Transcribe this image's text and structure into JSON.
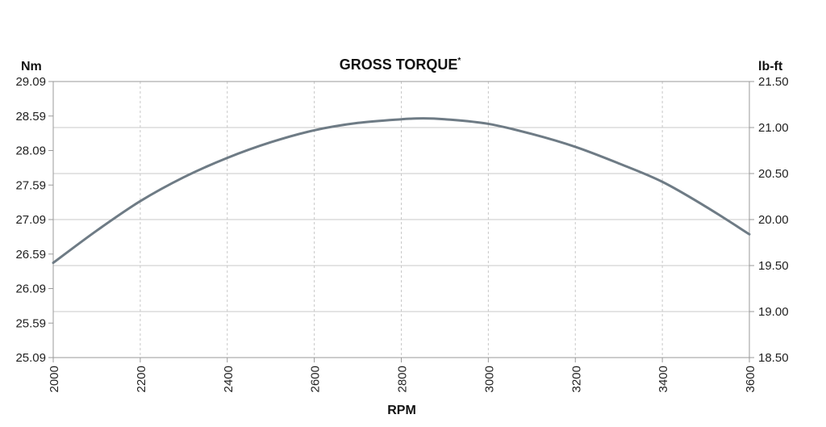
{
  "chart_data": {
    "type": "line",
    "title": "GROSS TORQUE",
    "title_superscript": "*",
    "xlabel": "RPM",
    "y_left_label": "Nm",
    "y_right_label": "lb-ft",
    "xlim": [
      2000,
      3600
    ],
    "x_ticks": [
      "2000",
      "2200",
      "2400",
      "2600",
      "2800",
      "3000",
      "3200",
      "3400",
      "3600"
    ],
    "y_left_lim": [
      25.09,
      29.09
    ],
    "y_left_ticks": [
      "29.09",
      "28.59",
      "28.09",
      "27.59",
      "27.09",
      "26.59",
      "26.09",
      "25.59",
      "25.09"
    ],
    "y_right_lim": [
      18.5,
      21.5
    ],
    "y_right_ticks": [
      "21.50",
      "21.00",
      "20.50",
      "20.00",
      "19.50",
      "19.00",
      "18.50"
    ],
    "grid": true,
    "series_color": "#6e7b85",
    "series": [
      {
        "x": [
          2000,
          2100,
          2200,
          2300,
          2400,
          2500,
          2600,
          2700,
          2800,
          2850,
          2900,
          3000,
          3100,
          3200,
          3300,
          3400,
          3500,
          3600
        ],
        "y": [
          19.53,
          19.88,
          20.2,
          20.46,
          20.67,
          20.84,
          20.97,
          21.05,
          21.09,
          21.1,
          21.09,
          21.04,
          20.93,
          20.79,
          20.61,
          20.41,
          20.14,
          19.84
        ]
      }
    ]
  }
}
